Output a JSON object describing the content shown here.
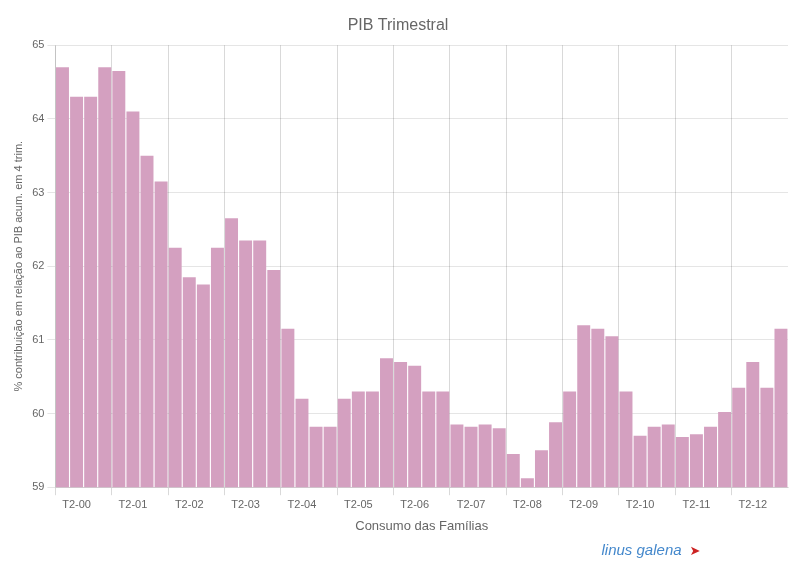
{
  "chart_data": {
    "type": "bar",
    "title": "PIB Trimestral",
    "x_label": "Consumo das Famílias",
    "y_label": "% contribuição em relação ao PIB acum. em 4 trim.",
    "categories": [
      null,
      "T2-00",
      null,
      null,
      null,
      "T2-01",
      null,
      null,
      null,
      "T2-02",
      null,
      null,
      null,
      "T2-03",
      null,
      null,
      null,
      "T2-04",
      null,
      null,
      null,
      "T2-05",
      null,
      null,
      null,
      "T2-06",
      null,
      null,
      null,
      "T2-07",
      null,
      null,
      null,
      "T2-08",
      null,
      null,
      null,
      "T2-09",
      null,
      null,
      null,
      "T2-10",
      null,
      null,
      null,
      "T2-11",
      null,
      null,
      null,
      "T2-12",
      null,
      null
    ],
    "values": [
      64.7,
      64.3,
      64.3,
      64.7,
      64.65,
      64.1,
      63.5,
      63.15,
      62.25,
      61.85,
      61.75,
      62.25,
      62.65,
      62.35,
      62.35,
      61.95,
      61.15,
      60.2,
      59.82,
      59.82,
      60.2,
      60.3,
      60.3,
      60.75,
      60.7,
      60.65,
      60.3,
      60.3,
      59.85,
      59.82,
      59.85,
      59.8,
      59.45,
      59.12,
      59.5,
      59.88,
      60.3,
      61.2,
      61.15,
      61.05,
      60.3,
      59.7,
      59.82,
      59.85,
      59.68,
      59.72,
      59.82,
      60.02,
      60.35,
      60.7,
      60.35,
      61.15
    ],
    "color": "#d4a0c0",
    "ylim": [
      59,
      65
    ],
    "yticks": [
      59,
      60,
      61,
      62,
      63,
      64,
      65
    ],
    "grid": true,
    "annotations": [
      {
        "text": "linus galena",
        "color": "#4488cc"
      },
      {
        "text": "➤",
        "color": "#cc2222"
      }
    ]
  }
}
